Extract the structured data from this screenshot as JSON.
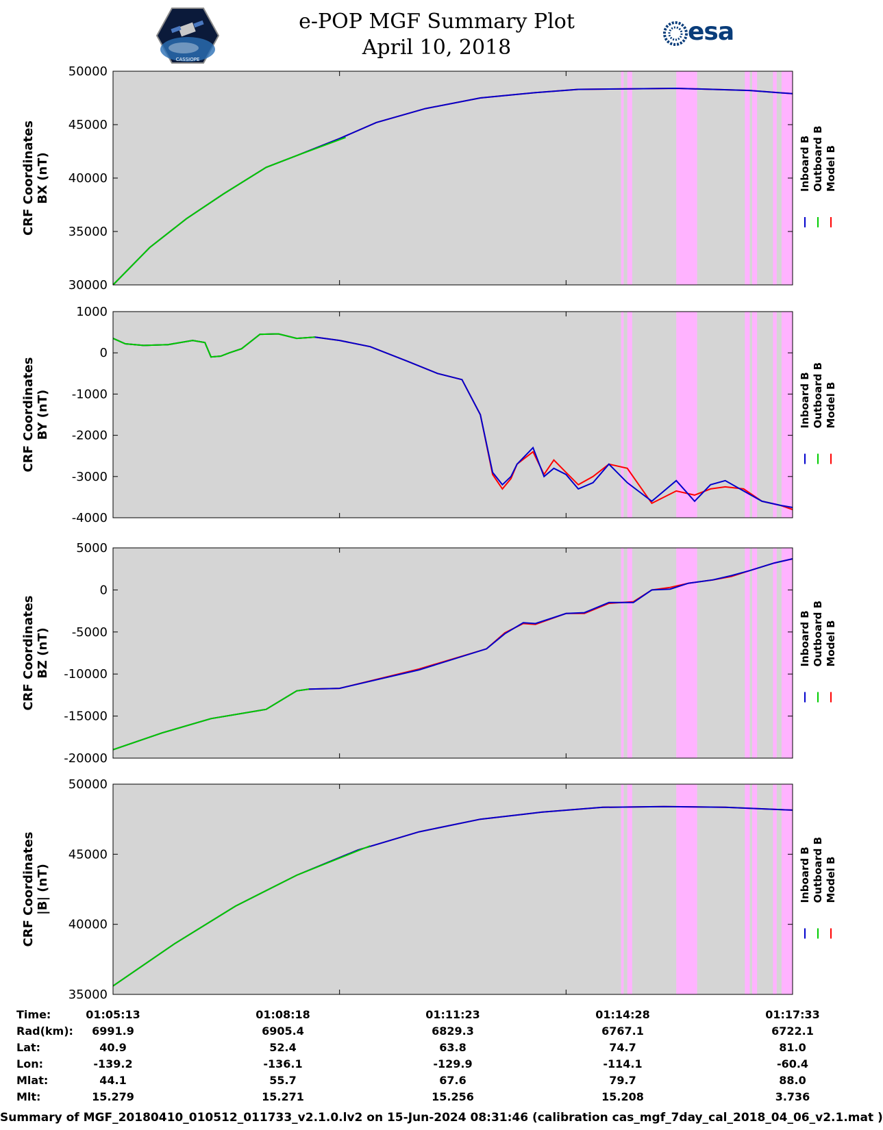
{
  "header": {
    "title": "e-POP MGF Summary Plot",
    "date": "April 10, 2018",
    "left_logo_text": "CASSIOPE",
    "right_logo_text": "esa"
  },
  "colors": {
    "background_plot": "#d5d5d5",
    "gap_shading": "#ffb3ff",
    "inboard": "#0000cc",
    "outboard": "#00cc00",
    "model": "#ff0000"
  },
  "chart_data": [
    {
      "type": "line",
      "ylabel_line1": "CRF Coordinates",
      "ylabel_line2": "BX (nT)",
      "ylim": [
        30000,
        50000
      ],
      "yticks": [
        30000,
        35000,
        40000,
        45000,
        50000
      ],
      "ytick_labels": [
        "30000",
        "35000",
        "40000",
        "45000",
        "50000"
      ],
      "x_range_s": [
        0,
        555
      ],
      "time_series": {
        "t": [
          0,
          30,
          60,
          90,
          125,
          150,
          185,
          215,
          255,
          300,
          345,
          380,
          420,
          460,
          490,
          520,
          555
        ],
        "inboard": [
          30000,
          33500,
          36200,
          38500,
          41000,
          42100,
          43700,
          45200,
          46500,
          47500,
          48000,
          48300,
          48350,
          48400,
          48300,
          48200,
          47900
        ],
        "model": [
          30000,
          33500,
          36200,
          38500,
          41000,
          42100,
          43700,
          45200,
          46500,
          47500,
          48000,
          48300,
          48350,
          48400,
          48300,
          48200,
          47900
        ],
        "outboard_t": [
          0,
          30,
          60,
          90,
          125,
          150,
          190
        ],
        "outboard": [
          30000,
          33500,
          36200,
          38500,
          41000,
          42100,
          43800
        ]
      },
      "legend": [
        "Inboard B",
        "Outboard B",
        "Model B"
      ]
    },
    {
      "type": "line",
      "ylabel_line1": "CRF Coordinates",
      "ylabel_line2": "BY (nT)",
      "ylim": [
        -4000,
        1000
      ],
      "yticks": [
        -4000,
        -3000,
        -2000,
        -1000,
        0,
        1000
      ],
      "ytick_labels": [
        "-4000",
        "-3000",
        "-2000",
        "-1000",
        "0",
        "1000"
      ],
      "x_range_s": [
        0,
        555
      ],
      "time_series": {
        "t": [
          0,
          10,
          25,
          45,
          65,
          75,
          80,
          88,
          95,
          105,
          120,
          135,
          150,
          165,
          185,
          210,
          240,
          265,
          285,
          300,
          310,
          318,
          325,
          330,
          343,
          352,
          360,
          370,
          380,
          392,
          405,
          420,
          440,
          460,
          475,
          488,
          500,
          515,
          530,
          545,
          555
        ],
        "inboard": [
          350,
          220,
          180,
          200,
          300,
          250,
          -100,
          -80,
          0,
          100,
          450,
          460,
          350,
          380,
          300,
          150,
          -200,
          -500,
          -650,
          -1500,
          -2900,
          -3200,
          -3000,
          -2700,
          -2300,
          -3000,
          -2800,
          -2950,
          -3300,
          -3150,
          -2700,
          -3150,
          -3600,
          -3100,
          -3600,
          -3200,
          -3100,
          -3350,
          -3600,
          -3700,
          -3750
        ],
        "model": [
          350,
          220,
          180,
          200,
          300,
          250,
          -100,
          -80,
          0,
          100,
          450,
          460,
          350,
          380,
          300,
          150,
          -200,
          -500,
          -650,
          -1500,
          -2950,
          -3300,
          -3050,
          -2700,
          -2400,
          -2950,
          -2600,
          -2900,
          -3200,
          -3000,
          -2700,
          -2800,
          -3650,
          -3350,
          -3450,
          -3300,
          -3250,
          -3300,
          -3600,
          -3700,
          -3800
        ],
        "outboard_t": [
          0,
          10,
          25,
          45,
          65,
          75,
          80,
          88,
          95,
          105,
          120,
          135,
          150,
          165
        ],
        "outboard": [
          350,
          220,
          180,
          200,
          300,
          250,
          -100,
          -80,
          0,
          100,
          450,
          460,
          350,
          380
        ]
      },
      "legend": [
        "Inboard B",
        "Outboard B",
        "Model B"
      ]
    },
    {
      "type": "line",
      "ylabel_line1": "CRF Coordinates",
      "ylabel_line2": "BZ (nT)",
      "ylim": [
        -20000,
        5000
      ],
      "yticks": [
        -20000,
        -15000,
        -10000,
        -5000,
        0,
        5000
      ],
      "ytick_labels": [
        "-20000",
        "-15000",
        "-10000",
        "-5000",
        "0",
        "5000"
      ],
      "x_range_s": [
        0,
        555
      ],
      "time_series": {
        "t": [
          0,
          40,
          80,
          125,
          150,
          160,
          185,
          250,
          305,
          320,
          335,
          345,
          370,
          385,
          405,
          425,
          440,
          455,
          470,
          490,
          505,
          520,
          540,
          555
        ],
        "inboard": [
          -19000,
          -17000,
          -15300,
          -14200,
          -12000,
          -11800,
          -11700,
          -9500,
          -7000,
          -5200,
          -3900,
          -4000,
          -2800,
          -2700,
          -1500,
          -1500,
          0,
          100,
          800,
          1200,
          1700,
          2300,
          3200,
          3700
        ],
        "model": [
          -19000,
          -17000,
          -15300,
          -14200,
          -12000,
          -11800,
          -11700,
          -9400,
          -7000,
          -5100,
          -4000,
          -4100,
          -2800,
          -2800,
          -1600,
          -1400,
          0,
          300,
          800,
          1200,
          1600,
          2300,
          3200,
          3700
        ],
        "outboard_t": [
          0,
          40,
          80,
          125,
          150,
          160
        ],
        "outboard": [
          -19000,
          -17000,
          -15300,
          -14200,
          -12000,
          -11800
        ]
      },
      "legend": [
        "Inboard B",
        "Outboard B",
        "Model B"
      ]
    },
    {
      "type": "line",
      "ylabel_line1": "CRF Coordinates",
      "ylabel_line2": "|B| (nT)",
      "ylim": [
        35000,
        50000
      ],
      "yticks": [
        35000,
        40000,
        45000,
        50000
      ],
      "ytick_labels": [
        "35000",
        "40000",
        "45000",
        "50000"
      ],
      "x_range_s": [
        0,
        555
      ],
      "time_series": {
        "t": [
          0,
          50,
          100,
          150,
          200,
          250,
          300,
          350,
          400,
          450,
          500,
          555
        ],
        "inboard": [
          35600,
          38600,
          41300,
          43500,
          45300,
          46600,
          47500,
          48000,
          48350,
          48400,
          48350,
          48150
        ],
        "model": [
          35600,
          38600,
          41300,
          43500,
          45300,
          46600,
          47500,
          48000,
          48350,
          48400,
          48350,
          48150
        ],
        "outboard_t": [
          0,
          50,
          100,
          150,
          210
        ],
        "outboard": [
          35600,
          38600,
          41300,
          43500,
          45600
        ]
      },
      "legend": [
        "Inboard B",
        "Outboard B",
        "Model B"
      ]
    }
  ],
  "gap_intervals_s": [
    [
      415,
      417
    ],
    [
      420,
      424
    ],
    [
      460,
      477
    ],
    [
      516,
      520
    ],
    [
      522,
      526
    ],
    [
      539,
      542
    ],
    [
      546,
      555
    ]
  ],
  "ephemeris": {
    "row_labels": [
      "Time:",
      "Rad(km):",
      "Lat:",
      "Lon:",
      "Mlat:",
      "Mlt:"
    ],
    "columns": [
      [
        "01:05:13",
        "6991.9",
        "40.9",
        "-139.2",
        "44.1",
        "15.279"
      ],
      [
        "01:08:18",
        "6905.4",
        "52.4",
        "-136.1",
        "55.7",
        "15.271"
      ],
      [
        "01:11:23",
        "6829.3",
        "63.8",
        "-129.9",
        "67.6",
        "15.256"
      ],
      [
        "01:14:28",
        "6767.1",
        "74.7",
        "-114.1",
        "79.7",
        "15.208"
      ],
      [
        "01:17:33",
        "6722.1",
        "81.0",
        "-60.4",
        "88.0",
        "3.736"
      ]
    ]
  },
  "footer": "Summary of MGF_20180410_010512_011733_v2.1.0.lv2 on 15-Jun-2024 08:31:46 (calibration cas_mgf_7day_cal_2018_04_06_v2.1.mat )"
}
